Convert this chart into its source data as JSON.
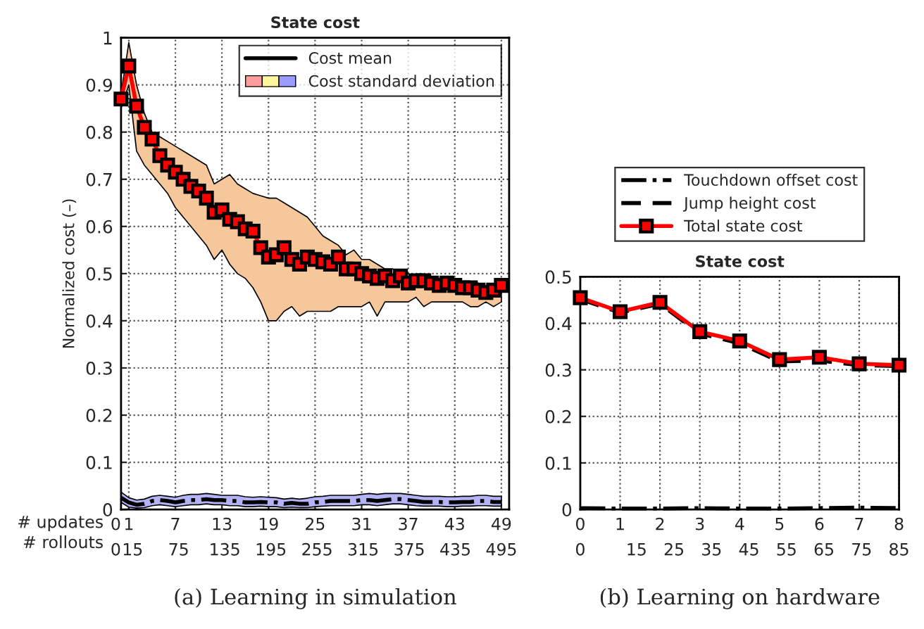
{
  "chart_data": [
    {
      "type": "line",
      "title": "State cost",
      "xlabel": "# updates",
      "x2label": "# rollouts",
      "ylabel": "Normalized cost (–)",
      "x2lim": [
        0,
        505
      ],
      "x2ticks": [
        0,
        15,
        75,
        135,
        195,
        255,
        315,
        375,
        435,
        495
      ],
      "x": [
        0,
        1,
        2,
        3,
        4,
        5,
        6,
        7,
        8,
        9,
        10,
        11,
        12,
        13,
        14,
        15,
        16,
        17,
        18,
        19,
        20,
        21,
        22,
        23,
        24,
        25,
        26,
        27,
        28,
        29,
        30,
        31,
        32,
        33,
        34,
        35,
        36,
        37,
        38,
        39,
        40,
        41,
        42,
        43,
        44,
        45,
        46,
        47,
        48,
        49
      ],
      "xlim": [
        0,
        50
      ],
      "ylim": [
        0,
        1
      ],
      "xticks": [
        0,
        1,
        7,
        13,
        19,
        25,
        31,
        37,
        43,
        49
      ],
      "yticks": [
        0,
        0.1,
        0.2,
        0.3,
        0.4,
        0.5,
        0.6,
        0.7,
        0.8,
        0.9,
        1
      ],
      "grid": true,
      "legend": "top right",
      "series": [
        {
          "color": "#000000",
          "line_style": "dashdot",
          "marker": "none",
          "values": [
            0.025,
            0.015,
            0.01,
            0.012,
            0.018,
            0.02,
            0.018,
            0.015,
            0.018,
            0.02,
            0.02,
            0.022,
            0.02,
            0.02,
            0.018,
            0.018,
            0.015,
            0.015,
            0.016,
            0.015,
            0.015,
            0.012,
            0.014,
            0.012,
            0.012,
            0.015,
            0.016,
            0.018,
            0.018,
            0.018,
            0.018,
            0.02,
            0.02,
            0.018,
            0.02,
            0.022,
            0.022,
            0.02,
            0.018,
            0.016,
            0.016,
            0.016,
            0.015,
            0.015,
            0.016,
            0.016,
            0.018,
            0.018,
            0.016,
            0.016
          ],
          "lower": [
            0.015,
            0.005,
            0.003,
            0.004,
            0.008,
            0.01,
            0.008,
            0.006,
            0.008,
            0.01,
            0.01,
            0.012,
            0.01,
            0.01,
            0.008,
            0.008,
            0.006,
            0.006,
            0.007,
            0.006,
            0.006,
            0.004,
            0.005,
            0.004,
            0.004,
            0.006,
            0.007,
            0.008,
            0.008,
            0.008,
            0.008,
            0.01,
            0.01,
            0.008,
            0.01,
            0.012,
            0.012,
            0.01,
            0.008,
            0.007,
            0.007,
            0.007,
            0.006,
            0.006,
            0.007,
            0.007,
            0.008,
            0.008,
            0.007,
            0.007
          ],
          "upper": [
            0.037,
            0.025,
            0.02,
            0.022,
            0.028,
            0.03,
            0.028,
            0.026,
            0.03,
            0.032,
            0.032,
            0.034,
            0.032,
            0.03,
            0.03,
            0.03,
            0.027,
            0.026,
            0.027,
            0.026,
            0.025,
            0.022,
            0.024,
            0.022,
            0.024,
            0.027,
            0.028,
            0.03,
            0.03,
            0.03,
            0.03,
            0.032,
            0.034,
            0.032,
            0.034,
            0.034,
            0.034,
            0.032,
            0.03,
            0.028,
            0.028,
            0.028,
            0.027,
            0.027,
            0.028,
            0.028,
            0.03,
            0.03,
            0.028,
            0.028
          ]
        },
        {
          "color": "#ff0000",
          "line_style": "solid",
          "marker": "square",
          "values": [
            0.87,
            0.94,
            0.855,
            0.81,
            0.785,
            0.75,
            0.73,
            0.715,
            0.7,
            0.685,
            0.675,
            0.66,
            0.63,
            0.635,
            0.615,
            0.61,
            0.595,
            0.59,
            0.555,
            0.535,
            0.54,
            0.555,
            0.53,
            0.52,
            0.535,
            0.53,
            0.525,
            0.52,
            0.535,
            0.51,
            0.51,
            0.5,
            0.495,
            0.49,
            0.495,
            0.485,
            0.495,
            0.48,
            0.485,
            0.485,
            0.48,
            0.475,
            0.48,
            0.475,
            0.47,
            0.47,
            0.465,
            0.46,
            0.465,
            0.475
          ],
          "lower": [
            0.85,
            0.9,
            0.76,
            0.73,
            0.71,
            0.69,
            0.67,
            0.64,
            0.62,
            0.6,
            0.58,
            0.56,
            0.53,
            0.55,
            0.52,
            0.5,
            0.49,
            0.47,
            0.44,
            0.4,
            0.4,
            0.42,
            0.43,
            0.41,
            0.42,
            0.42,
            0.42,
            0.42,
            0.43,
            0.43,
            0.43,
            0.43,
            0.44,
            0.41,
            0.44,
            0.44,
            0.44,
            0.44,
            0.45,
            0.43,
            0.44,
            0.44,
            0.44,
            0.44,
            0.44,
            0.43,
            0.43,
            0.44,
            0.43,
            0.44
          ],
          "upper": [
            0.88,
            0.99,
            0.9,
            0.84,
            0.8,
            0.79,
            0.78,
            0.77,
            0.76,
            0.75,
            0.74,
            0.73,
            0.69,
            0.7,
            0.71,
            0.69,
            0.68,
            0.67,
            0.665,
            0.66,
            0.66,
            0.65,
            0.64,
            0.63,
            0.62,
            0.6,
            0.58,
            0.57,
            0.56,
            0.54,
            0.55,
            0.53,
            0.53,
            0.52,
            0.51,
            0.51,
            0.5,
            0.5,
            0.49,
            0.49,
            0.49,
            0.49,
            0.48,
            0.48,
            0.48,
            0.48,
            0.48,
            0.47,
            0.47,
            0.49
          ]
        }
      ],
      "annotations": [
        "Cost mean",
        "Cost standard deviation",
        "(a) Learning in simulation"
      ]
    },
    {
      "type": "line",
      "title": "State cost",
      "x": [
        0,
        1,
        2,
        3,
        4,
        5,
        6,
        7,
        8
      ],
      "xlim": [
        0,
        8
      ],
      "ylim": [
        0,
        0.5
      ],
      "xticks": [
        0,
        1,
        2,
        3,
        4,
        5,
        6,
        7,
        8
      ],
      "x2lim": [
        0,
        85
      ],
      "x2ticks": [
        0,
        15,
        25,
        35,
        45,
        55,
        65,
        75,
        85
      ],
      "yticks": [
        0,
        0.1,
        0.2,
        0.3,
        0.4,
        0.5
      ],
      "grid": true,
      "legend": "top",
      "series": [
        {
          "name": "Touchdown offset cost",
          "color": "#000000",
          "line_style": "dashdot",
          "marker": "none",
          "values": [
            0.003,
            0.002,
            0.002,
            0.003,
            0.002,
            0.002,
            0.003,
            0.004,
            0.003
          ]
        },
        {
          "name": "Jump height cost",
          "color": "#000000",
          "line_style": "dashed",
          "marker": "none",
          "values": [
            0.452,
            0.423,
            0.442,
            0.378,
            0.357,
            0.318,
            0.32,
            0.31,
            0.308
          ]
        },
        {
          "name": "Total state cost",
          "color": "#ff0000",
          "line_style": "solid",
          "marker": "square",
          "values": [
            0.455,
            0.425,
            0.445,
            0.382,
            0.362,
            0.322,
            0.327,
            0.313,
            0.31
          ]
        }
      ],
      "annotations": [
        "(b) Learning on hardware"
      ]
    }
  ]
}
